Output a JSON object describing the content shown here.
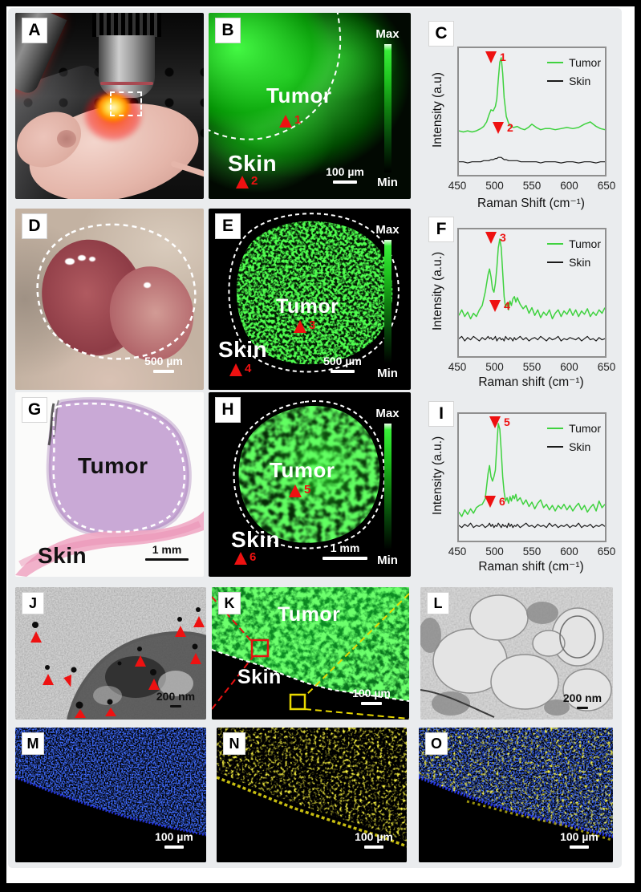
{
  "colors": {
    "map_green": "#27e127",
    "marker_red": "#ee1111",
    "tumor_line": "#3fd23f",
    "skin_line": "#1a1a1a",
    "dapi_blue": "#2233ee",
    "stain_yellow": "#e6df12",
    "he_purple": "#c9a9d6",
    "he_pink": "#f0a8c4"
  },
  "panels": {
    "A": {
      "letter": "A"
    },
    "B": {
      "letter": "B",
      "tumor_label": "Tumor",
      "skin_label": "Skin",
      "marker_tumor": "1",
      "marker_skin": "2",
      "scale_bar": "100 µm",
      "colorbar_max": "Max",
      "colorbar_min": "Min"
    },
    "C": {
      "letter": "C"
    },
    "D": {
      "letter": "D",
      "scale_bar": "500 µm"
    },
    "E": {
      "letter": "E",
      "tumor_label": "Tumor",
      "skin_label": "Skin",
      "marker_tumor": "3",
      "marker_skin": "4",
      "scale_bar": "500 µm",
      "colorbar_max": "Max",
      "colorbar_min": "Min"
    },
    "F": {
      "letter": "F"
    },
    "G": {
      "letter": "G",
      "tumor_label": "Tumor",
      "skin_label": "Skin",
      "scale_bar": "1 mm"
    },
    "H": {
      "letter": "H",
      "tumor_label": "Tumor",
      "skin_label": "Skin",
      "marker_tumor": "5",
      "marker_skin": "6",
      "scale_bar": "1 mm",
      "colorbar_max": "Max",
      "colorbar_min": "Min"
    },
    "I": {
      "letter": "I"
    },
    "J": {
      "letter": "J",
      "scale_bar": "200 nm"
    },
    "K": {
      "letter": "K",
      "tumor_label": "Tumor",
      "skin_label": "Skin",
      "scale_bar": "100 µm"
    },
    "L": {
      "letter": "L",
      "scale_bar": "200 nm"
    },
    "M": {
      "letter": "M",
      "scale_bar": "100 µm"
    },
    "N": {
      "letter": "N",
      "scale_bar": "100 µm"
    },
    "O": {
      "letter": "O",
      "scale_bar": "100 µm"
    }
  },
  "chart_data": [
    {
      "type": "line",
      "panel": "C",
      "title": "",
      "xlabel": "Raman Shift (cm⁻¹)",
      "ylabel": "Intensity (a.u)",
      "xlim": [
        450,
        650
      ],
      "ylim": [
        0,
        1.05
      ],
      "xticks": [
        450,
        500,
        550,
        600,
        650
      ],
      "grid": false,
      "legend_position": "top-right",
      "markers": [
        {
          "label": "1",
          "x": 507
        },
        {
          "label": "2",
          "x": 505
        }
      ],
      "series": [
        {
          "name": "Tumor",
          "color": "#3fd23f",
          "x": [
            450,
            456,
            462,
            468,
            474,
            480,
            484,
            488,
            491,
            494,
            497,
            500,
            502,
            504,
            506,
            508,
            510,
            512,
            515,
            518,
            521,
            525,
            530,
            535,
            540,
            545,
            550,
            556,
            562,
            568,
            575,
            582,
            590,
            598,
            606,
            614,
            622,
            630,
            638,
            644,
            650
          ],
          "y": [
            0.34,
            0.33,
            0.34,
            0.33,
            0.34,
            0.36,
            0.38,
            0.42,
            0.48,
            0.53,
            0.52,
            0.56,
            0.63,
            0.8,
            0.96,
            1.0,
            0.86,
            0.64,
            0.47,
            0.41,
            0.38,
            0.37,
            0.38,
            0.36,
            0.35,
            0.37,
            0.4,
            0.37,
            0.35,
            0.36,
            0.36,
            0.35,
            0.36,
            0.37,
            0.36,
            0.37,
            0.4,
            0.42,
            0.38,
            0.36,
            0.35
          ]
        },
        {
          "name": "Skin",
          "color": "#1a1a1a",
          "x": [
            450,
            456,
            462,
            468,
            474,
            480,
            484,
            488,
            491,
            494,
            497,
            500,
            502,
            504,
            506,
            508,
            510,
            512,
            515,
            518,
            521,
            525,
            530,
            535,
            540,
            545,
            550,
            556,
            562,
            568,
            575,
            582,
            590,
            598,
            606,
            614,
            622,
            630,
            638,
            644,
            650
          ],
          "y": [
            0.06,
            0.06,
            0.05,
            0.06,
            0.06,
            0.06,
            0.07,
            0.07,
            0.07,
            0.08,
            0.08,
            0.09,
            0.09,
            0.1,
            0.1,
            0.1,
            0.09,
            0.08,
            0.08,
            0.07,
            0.07,
            0.07,
            0.07,
            0.06,
            0.06,
            0.06,
            0.06,
            0.06,
            0.05,
            0.06,
            0.06,
            0.06,
            0.05,
            0.06,
            0.06,
            0.05,
            0.06,
            0.06,
            0.05,
            0.06,
            0.06
          ]
        }
      ]
    },
    {
      "type": "line",
      "panel": "F",
      "title": "",
      "xlabel": "Raman shift (cm⁻¹)",
      "ylabel": "Intensity (a.u.)",
      "xlim": [
        450,
        650
      ],
      "ylim": [
        0,
        1.05
      ],
      "xticks": [
        450,
        500,
        550,
        600,
        650
      ],
      "grid": false,
      "legend_position": "top-right",
      "markers": [
        {
          "label": "3",
          "x": 507
        },
        {
          "label": "4",
          "x": 500
        }
      ],
      "series": [
        {
          "name": "Tumor",
          "color": "#3fd23f",
          "x": [
            450,
            454,
            458,
            462,
            466,
            470,
            474,
            478,
            482,
            486,
            490,
            492,
            494,
            496,
            498,
            500,
            502,
            504,
            506,
            508,
            510,
            512,
            514,
            516,
            518,
            520,
            522,
            524,
            526,
            528,
            530,
            534,
            538,
            542,
            546,
            550,
            554,
            558,
            562,
            566,
            570,
            574,
            578,
            582,
            586,
            590,
            594,
            598,
            602,
            606,
            610,
            614,
            618,
            622,
            626,
            630,
            634,
            638,
            642,
            646,
            650
          ],
          "y": [
            0.31,
            0.36,
            0.3,
            0.34,
            0.28,
            0.33,
            0.3,
            0.36,
            0.4,
            0.52,
            0.68,
            0.73,
            0.66,
            0.55,
            0.52,
            0.6,
            0.74,
            0.92,
            1.0,
            0.92,
            0.7,
            0.48,
            0.38,
            0.42,
            0.36,
            0.44,
            0.4,
            0.46,
            0.48,
            0.43,
            0.47,
            0.41,
            0.37,
            0.4,
            0.33,
            0.38,
            0.31,
            0.36,
            0.29,
            0.34,
            0.31,
            0.36,
            0.28,
            0.33,
            0.36,
            0.3,
            0.35,
            0.32,
            0.37,
            0.31,
            0.36,
            0.3,
            0.35,
            0.32,
            0.37,
            0.3,
            0.34,
            0.31,
            0.36,
            0.33,
            0.38
          ]
        },
        {
          "name": "Skin",
          "color": "#1a1a1a",
          "x": [
            450,
            454,
            458,
            462,
            466,
            470,
            474,
            478,
            482,
            486,
            490,
            492,
            494,
            496,
            498,
            500,
            502,
            504,
            506,
            508,
            510,
            512,
            514,
            516,
            518,
            520,
            522,
            524,
            526,
            528,
            530,
            534,
            538,
            542,
            546,
            550,
            554,
            558,
            562,
            566,
            570,
            574,
            578,
            582,
            586,
            590,
            594,
            598,
            602,
            606,
            610,
            614,
            618,
            622,
            626,
            630,
            634,
            638,
            642,
            646,
            650
          ],
          "y": [
            0.1,
            0.12,
            0.08,
            0.11,
            0.09,
            0.12,
            0.1,
            0.08,
            0.11,
            0.09,
            0.12,
            0.1,
            0.11,
            0.09,
            0.1,
            0.12,
            0.08,
            0.1,
            0.11,
            0.09,
            0.1,
            0.08,
            0.12,
            0.1,
            0.09,
            0.11,
            0.1,
            0.08,
            0.11,
            0.09,
            0.1,
            0.12,
            0.09,
            0.11,
            0.08,
            0.1,
            0.11,
            0.09,
            0.12,
            0.1,
            0.08,
            0.11,
            0.09,
            0.1,
            0.12,
            0.08,
            0.1,
            0.09,
            0.11,
            0.1,
            0.09,
            0.11,
            0.08,
            0.1,
            0.12,
            0.09,
            0.1,
            0.08,
            0.11,
            0.09,
            0.1
          ]
        }
      ]
    },
    {
      "type": "line",
      "panel": "I",
      "title": "",
      "xlabel": "Raman shift (cm⁻¹)",
      "ylabel": "Intensity (a.u.)",
      "xlim": [
        450,
        650
      ],
      "ylim": [
        0,
        1.05
      ],
      "xticks": [
        450,
        500,
        550,
        600,
        650
      ],
      "grid": false,
      "legend_position": "top-right",
      "markers": [
        {
          "label": "5",
          "x": 504
        },
        {
          "label": "6",
          "x": 496
        }
      ],
      "series": [
        {
          "name": "Tumor",
          "color": "#3fd23f",
          "x": [
            450,
            454,
            458,
            462,
            466,
            470,
            474,
            478,
            482,
            486,
            490,
            492,
            494,
            496,
            498,
            500,
            502,
            504,
            506,
            508,
            510,
            512,
            514,
            516,
            518,
            520,
            522,
            524,
            526,
            528,
            530,
            534,
            538,
            542,
            546,
            550,
            554,
            558,
            562,
            566,
            570,
            574,
            578,
            582,
            586,
            590,
            594,
            598,
            602,
            606,
            610,
            614,
            618,
            622,
            626,
            630,
            634,
            638,
            642,
            646,
            650
          ],
          "y": [
            0.2,
            0.16,
            0.22,
            0.18,
            0.23,
            0.19,
            0.24,
            0.26,
            0.27,
            0.32,
            0.55,
            0.62,
            0.52,
            0.48,
            0.52,
            0.58,
            0.8,
            1.0,
            0.95,
            0.75,
            0.52,
            0.38,
            0.3,
            0.33,
            0.28,
            0.34,
            0.3,
            0.35,
            0.32,
            0.36,
            0.3,
            0.33,
            0.27,
            0.31,
            0.25,
            0.29,
            0.23,
            0.28,
            0.31,
            0.24,
            0.27,
            0.22,
            0.26,
            0.21,
            0.26,
            0.23,
            0.27,
            0.22,
            0.26,
            0.21,
            0.25,
            0.28,
            0.22,
            0.26,
            0.2,
            0.24,
            0.27,
            0.21,
            0.3,
            0.24,
            0.27
          ]
        },
        {
          "name": "Skin",
          "color": "#1a1a1a",
          "x": [
            450,
            454,
            458,
            462,
            466,
            470,
            474,
            478,
            482,
            486,
            490,
            492,
            494,
            496,
            498,
            500,
            502,
            504,
            506,
            508,
            510,
            512,
            514,
            516,
            518,
            520,
            522,
            524,
            526,
            528,
            530,
            534,
            538,
            542,
            546,
            550,
            554,
            558,
            562,
            566,
            570,
            574,
            578,
            582,
            586,
            590,
            594,
            598,
            602,
            606,
            610,
            614,
            618,
            622,
            626,
            630,
            634,
            638,
            642,
            646,
            650
          ],
          "y": [
            0.08,
            0.06,
            0.09,
            0.07,
            0.1,
            0.06,
            0.08,
            0.07,
            0.09,
            0.06,
            0.08,
            0.1,
            0.07,
            0.09,
            0.06,
            0.08,
            0.07,
            0.1,
            0.08,
            0.06,
            0.09,
            0.07,
            0.08,
            0.06,
            0.1,
            0.07,
            0.09,
            0.06,
            0.08,
            0.07,
            0.09,
            0.06,
            0.08,
            0.1,
            0.07,
            0.08,
            0.06,
            0.09,
            0.07,
            0.08,
            0.06,
            0.1,
            0.07,
            0.09,
            0.06,
            0.08,
            0.07,
            0.09,
            0.06,
            0.08,
            0.07,
            0.1,
            0.06,
            0.08,
            0.07,
            0.09,
            0.06,
            0.08,
            0.07,
            0.09,
            0.07
          ]
        }
      ]
    }
  ]
}
